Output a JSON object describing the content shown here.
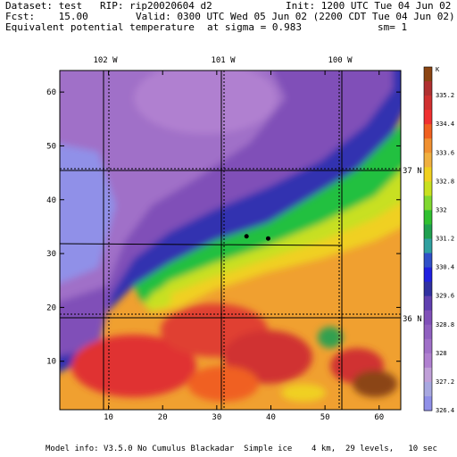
{
  "header": {
    "dataset": "Dataset: test   RIP: rip20020604 d2",
    "init": "Init: 1200 UTC Tue 04 Jun 02",
    "fcst": "Fcst:    15.00",
    "valid": "Valid: 0300 UTC Wed 05 Jun 02 (2200 CDT Tue 04 Jun 02)",
    "field": "Equivalent potential temperature",
    "sigma": "at sigma = 0.983",
    "sm": "sm= 1"
  },
  "footer": "Model info: V3.5.0 No Cumulus Blackadar  Simple ice    4 km,  29 levels,   10 sec",
  "map": {
    "lon_labels": [
      "102 W",
      "101 W",
      "100 W"
    ],
    "lat_labels": [
      "37 N",
      "36 N"
    ],
    "x_ticks": [
      "10",
      "20",
      "30",
      "40",
      "50",
      "60"
    ],
    "y_ticks": [
      "10",
      "20",
      "30",
      "40",
      "50",
      "60"
    ],
    "x_range": [
      1,
      64
    ],
    "y_range": [
      1,
      64
    ],
    "stations": [
      {
        "x": 35.5,
        "y": 33.2
      },
      {
        "x": 39.5,
        "y": 32.8
      }
    ]
  },
  "colorbar": {
    "unit": "K",
    "labels": [
      "335.2",
      "334.4",
      "333.6",
      "332.8",
      "332",
      "331.2",
      "330.4",
      "329.6",
      "328.8",
      "328",
      "327.2",
      "326.4"
    ],
    "colors": [
      "#8B4513",
      "#B03030",
      "#D03030",
      "#F03030",
      "#F06020",
      "#F09030",
      "#F0B040",
      "#F0D020",
      "#C8E020",
      "#80D830",
      "#30C030",
      "#20A050",
      "#30A0A0",
      "#3050C8",
      "#2020E0",
      "#3030A0",
      "#6040B0",
      "#8050B8",
      "#9060C0",
      "#A070C8",
      "#B080D0",
      "#C0A0D8",
      "#A8A8E0",
      "#9090E8"
    ]
  }
}
